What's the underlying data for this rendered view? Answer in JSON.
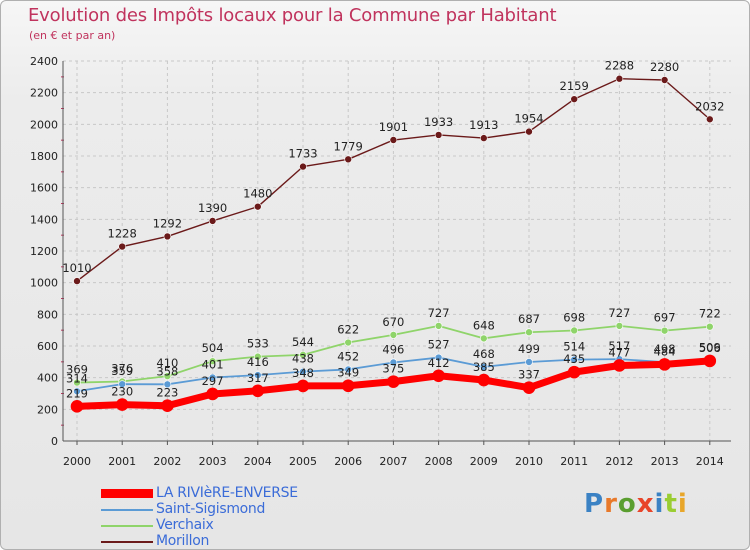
{
  "title": "Evolution des Impôts locaux pour la Commune par Habitant",
  "subtitle": "(en € et par an)",
  "brand": [
    "P",
    "r",
    "o",
    "x",
    "i",
    "t",
    "i"
  ],
  "brand_colors": [
    "#3b82c4",
    "#e8792a",
    "#5a9e2f",
    "#e8452a",
    "#3b82c4",
    "#9acd32",
    "#e8a62a"
  ],
  "chart_data": {
    "type": "line",
    "title": "Evolution des Impôts locaux pour la Commune par Habitant",
    "subtitle": "(en € et par an)",
    "x": [
      "2000",
      "2001",
      "2002",
      "2003",
      "2004",
      "2005",
      "2006",
      "2007",
      "2008",
      "2009",
      "2010",
      "2011",
      "2012",
      "2013",
      "2014"
    ],
    "y_ticks": [
      0,
      200,
      400,
      600,
      800,
      1000,
      1200,
      1400,
      1600,
      1800,
      2000,
      2200,
      2400
    ],
    "ylim": [
      0,
      2400
    ],
    "grid": true,
    "legend_position": "bottom-left",
    "series": [
      {
        "name": "Morillon",
        "color": "#6b1a1a",
        "values": [
          1010,
          1228,
          1292,
          1390,
          1480,
          1733,
          1779,
          1901,
          1933,
          1913,
          1954,
          2159,
          2288,
          2280,
          2032
        ],
        "labels": [
          "1010",
          "1228",
          "1292",
          "1390",
          "1480",
          "1733",
          "1779",
          "1901",
          "1933",
          "1913",
          "1954",
          "2159",
          "2288",
          "2280",
          "2032"
        ]
      },
      {
        "name": "Verchaix",
        "color": "#8fd46a",
        "values": [
          369,
          376,
          410,
          504,
          533,
          544,
          622,
          670,
          727,
          648,
          687,
          698,
          727,
          697,
          722
        ],
        "labels": [
          "369",
          "376",
          "410",
          "504",
          "533",
          "544",
          "622",
          "670",
          "727",
          "648",
          "687",
          "698",
          "727",
          "697",
          "722"
        ]
      },
      {
        "name": "Saint-Sigismond",
        "color": "#5b9bd5",
        "values": [
          314,
          359,
          358,
          401,
          416,
          438,
          452,
          496,
          527,
          468,
          499,
          514,
          517,
          498,
          509
        ],
        "labels": [
          "314",
          "359",
          "358",
          "401",
          "416",
          "438",
          "452",
          "496",
          "527",
          "468",
          "499",
          "514",
          "517",
          "498",
          "509"
        ]
      },
      {
        "name": "LA RIVIèRE-ENVERSE",
        "color": "#ff0000",
        "values": [
          219,
          230,
          223,
          297,
          317,
          348,
          349,
          375,
          412,
          385,
          337,
          435,
          477,
          484,
          506
        ],
        "labels": [
          "219",
          "230",
          "223",
          "297",
          "317",
          "348",
          "349",
          "375",
          "412",
          "385",
          "337",
          "435",
          "477",
          "484",
          "506"
        ]
      }
    ],
    "legend": [
      "LA RIVIèRE-ENVERSE",
      "Saint-Sigismond",
      "Verchaix",
      "Morillon"
    ]
  }
}
